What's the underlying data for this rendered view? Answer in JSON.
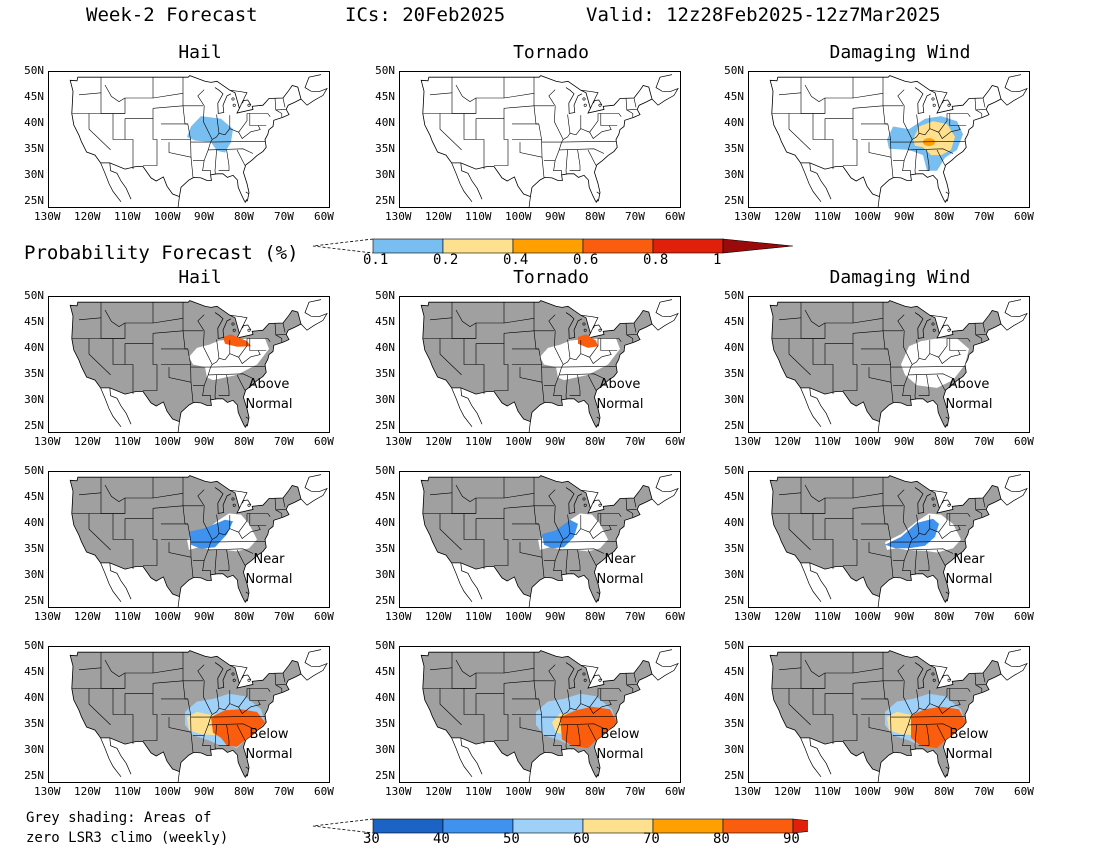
{
  "header": {
    "title": "Week-2 Forecast",
    "ics": "ICs: 20Feb2025",
    "valid": "Valid: 12z28Feb2025-12z7Mar2025"
  },
  "columns": [
    "Hail",
    "Tornado",
    "Damaging Wind"
  ],
  "prob_section_title": "Probability Forecast (%)",
  "rows": [
    {
      "id": "prob",
      "label": ""
    },
    {
      "id": "above",
      "label": "Above Normal"
    },
    {
      "id": "near",
      "label": "Near Normal"
    },
    {
      "id": "below",
      "label": "Below Normal"
    }
  ],
  "lat_labels": [
    "50N",
    "45N",
    "40N",
    "35N",
    "30N",
    "25N"
  ],
  "lon_labels": [
    "130W",
    "120W",
    "110W",
    "100W",
    "90W",
    "80W",
    "70W",
    "60W"
  ],
  "colorbar_prob": {
    "ticks": [
      "0.1",
      "0.2",
      "0.4",
      "0.6",
      "0.8",
      "1"
    ],
    "colors": [
      "#78bef0",
      "#fee08f",
      "#ffa000",
      "#fb5d0e",
      "#e0200a",
      "#9a0a0a"
    ]
  },
  "colorbar_pct": {
    "ticks": [
      "30",
      "40",
      "50",
      "60",
      "70",
      "80",
      "90"
    ],
    "colors": [
      "#1c63c6",
      "#3f93ef",
      "#9fd0f7",
      "#fee08f",
      "#ffa000",
      "#fb5d0e",
      "#e0200a"
    ]
  },
  "footnote": {
    "line1": "Grey shading: Areas of",
    "line2": "zero LSR3 climo (weekly)"
  },
  "colors": {
    "grey": "#a0a0a0",
    "blue_light": "#78bef0",
    "yellow": "#fee08f",
    "orange": "#ffa000",
    "red_orange": "#fb5d0e",
    "dark_blue": "#1c63c6",
    "mid_blue": "#3f93ef",
    "light_blue": "#9fd0f7"
  }
}
